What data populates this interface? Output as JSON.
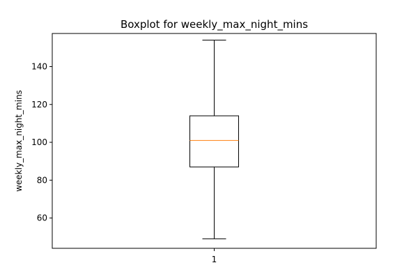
{
  "chart_data": {
    "type": "boxplot",
    "title": "Boxplot for weekly_max_night_mins",
    "xlabel": "",
    "ylabel": "weekly_max_night_mins",
    "categories": [
      "1"
    ],
    "ylim": [
      44,
      157.5
    ],
    "yticks": [
      60,
      80,
      100,
      120,
      140
    ],
    "grid": false,
    "boxes": [
      {
        "category": "1",
        "whisker_low": 49,
        "q1": 87,
        "median": 101,
        "q3": 114,
        "whisker_high": 154
      }
    ],
    "colors": {
      "box": "#000000",
      "median": "#ff7f0e",
      "whisker": "#000000"
    }
  }
}
